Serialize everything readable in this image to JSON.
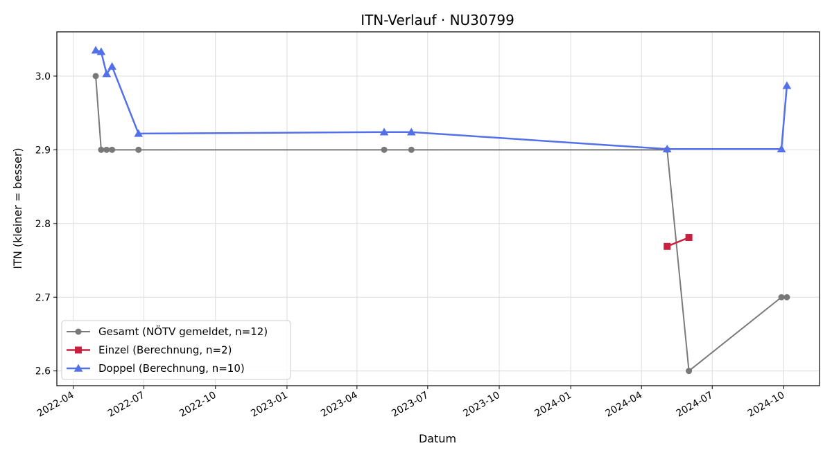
{
  "chart_data": {
    "type": "line",
    "title": "ITN-Verlauf · NU30799",
    "xlabel": "Datum",
    "ylabel": "ITN  (kleiner = besser)",
    "x_axis": "date",
    "xlim": [
      "2022-03-11",
      "2024-11-16"
    ],
    "ylim": [
      2.58,
      3.06
    ],
    "x_ticks": [
      "2022-04",
      "2022-07",
      "2022-10",
      "2023-01",
      "2023-04",
      "2023-07",
      "2023-10",
      "2024-01",
      "2024-04",
      "2024-07",
      "2024-10"
    ],
    "y_ticks": [
      "2.6",
      "2.7",
      "2.8",
      "2.9",
      "3.0"
    ],
    "grid": true,
    "legend_position": "bottom-left",
    "series": [
      {
        "name": "Gesamt (NÖTV gemeldet, n=12)",
        "color": "#6b6b6b",
        "marker": "circle",
        "points": [
          {
            "x": "2022-04-30",
            "y": 3.0
          },
          {
            "x": "2022-05-07",
            "y": 2.9
          },
          {
            "x": "2022-05-14",
            "y": 2.9
          },
          {
            "x": "2022-05-21",
            "y": 2.9
          },
          {
            "x": "2022-06-24",
            "y": 2.9
          },
          {
            "x": "2023-05-06",
            "y": 2.9
          },
          {
            "x": "2023-06-10",
            "y": 2.9
          },
          {
            "x": "2024-05-04",
            "y": 2.9
          },
          {
            "x": "2024-06-01",
            "y": 2.6
          },
          {
            "x": "2024-09-28",
            "y": 2.7
          },
          {
            "x": "2024-10-05",
            "y": 2.7
          }
        ]
      },
      {
        "name": "Einzel (Berechnung, n=2)",
        "color": "#c8203f",
        "marker": "square",
        "points": [
          {
            "x": "2024-05-04",
            "y": 2.769
          },
          {
            "x": "2024-06-01",
            "y": 2.781
          }
        ]
      },
      {
        "name": "Doppel (Berechnung, n=10)",
        "color": "#5470e8",
        "marker": "triangle",
        "points": [
          {
            "x": "2022-04-30",
            "y": 3.035
          },
          {
            "x": "2022-05-07",
            "y": 3.033
          },
          {
            "x": "2022-05-14",
            "y": 3.003
          },
          {
            "x": "2022-05-21",
            "y": 3.013
          },
          {
            "x": "2022-06-24",
            "y": 2.922
          },
          {
            "x": "2023-05-06",
            "y": 2.924
          },
          {
            "x": "2023-06-10",
            "y": 2.924
          },
          {
            "x": "2024-05-04",
            "y": 2.901
          },
          {
            "x": "2024-09-28",
            "y": 2.901
          },
          {
            "x": "2024-10-05",
            "y": 2.987
          }
        ]
      }
    ]
  }
}
